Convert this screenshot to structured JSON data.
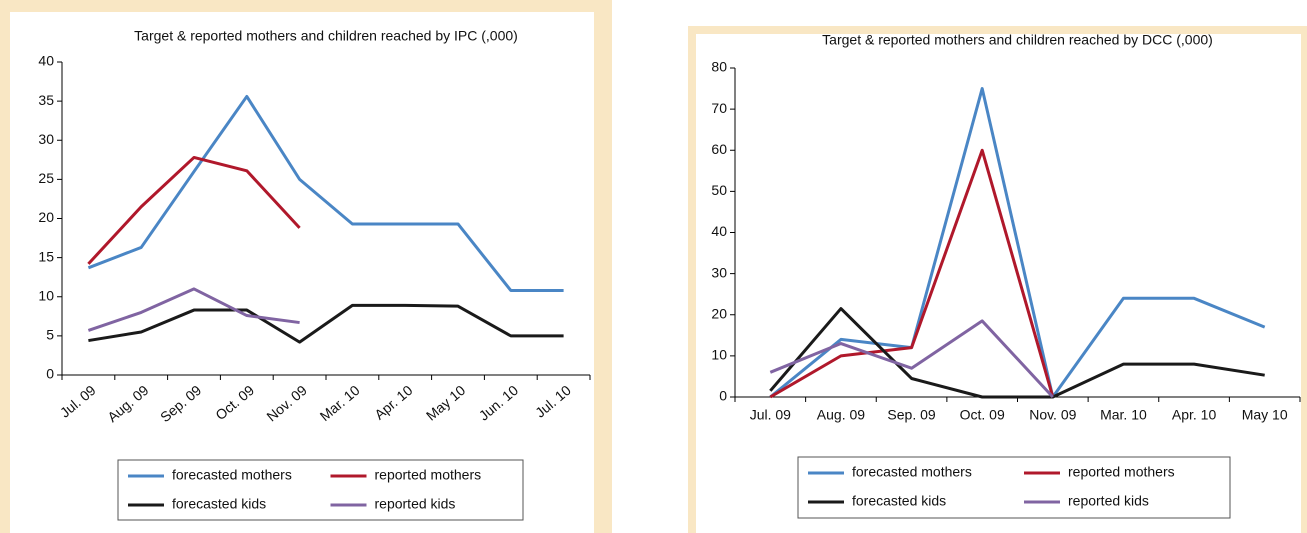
{
  "chart_data": [
    {
      "type": "line",
      "title": "Target & reported mothers and children reached by IPC (,000)",
      "categories": [
        "Jul. 09",
        "Aug. 09",
        "Sep. 09",
        "Oct. 09",
        "Nov. 09",
        "Mar. 10",
        "Apr. 10",
        "May 10",
        "Jun. 10",
        "Jul. 10"
      ],
      "series": [
        {
          "name": "forecasted mothers",
          "color": "#4a86c5",
          "values": [
            13.7,
            16.3,
            26,
            35.6,
            25,
            19.3,
            19.3,
            19.3,
            10.8,
            10.8
          ]
        },
        {
          "name": "reported mothers",
          "color": "#b0182b",
          "values": [
            14.2,
            21.5,
            27.8,
            26.1,
            18.8,
            null,
            null,
            null,
            null,
            null
          ]
        },
        {
          "name": "forecasted kids",
          "color": "#1a1a1a",
          "values": [
            4.4,
            5.5,
            8.3,
            8.3,
            4.2,
            8.9,
            8.9,
            8.8,
            5,
            5
          ]
        },
        {
          "name": "reported kids",
          "color": "#8064a2",
          "values": [
            5.7,
            8,
            11,
            7.6,
            6.7,
            null,
            null,
            null,
            null,
            null
          ]
        }
      ],
      "ylim": [
        0,
        40
      ],
      "yticks": [
        0,
        5,
        10,
        15,
        20,
        25,
        30,
        35,
        40
      ]
    },
    {
      "type": "line",
      "title": "Target & reported mothers and children reached by DCC (,000)",
      "categories": [
        "Jul. 09",
        "Aug. 09",
        "Sep. 09",
        "Oct. 09",
        "Nov. 09",
        "Mar. 10",
        "Apr. 10",
        "May 10"
      ],
      "series": [
        {
          "name": "forecasted mothers",
          "color": "#4a86c5",
          "values": [
            0,
            14,
            12,
            75,
            0,
            24,
            24,
            17
          ]
        },
        {
          "name": "reported mothers",
          "color": "#b0182b",
          "values": [
            0,
            10,
            12,
            60,
            0,
            null,
            null,
            null
          ]
        },
        {
          "name": "forecasted kids",
          "color": "#1a1a1a",
          "values": [
            1.5,
            21.5,
            4.5,
            0,
            0,
            8,
            8,
            5.3
          ]
        },
        {
          "name": "reported kids",
          "color": "#8064a2",
          "values": [
            6,
            13,
            7,
            18.5,
            0,
            null,
            null,
            null
          ]
        }
      ],
      "ylim": [
        0,
        80
      ],
      "yticks": [
        0,
        10,
        20,
        30,
        40,
        50,
        60,
        70,
        80
      ]
    }
  ]
}
